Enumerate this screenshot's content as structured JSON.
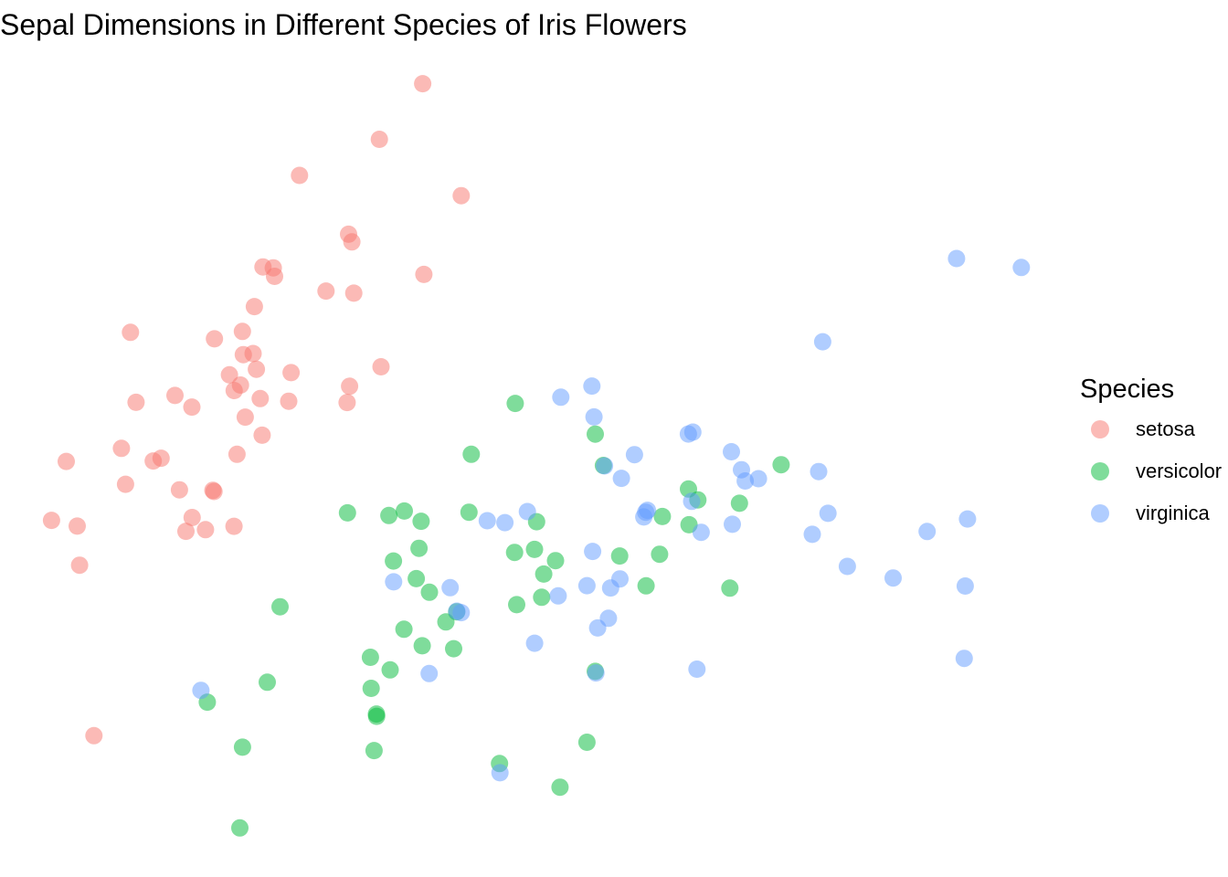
{
  "chart_data": {
    "type": "scatter",
    "title": "Sepal Dimensions in Different Species of Iris Flowers",
    "xlabel": "",
    "ylabel": "",
    "xlim": [
      4.25,
      7.95
    ],
    "ylim": [
      1.95,
      4.45
    ],
    "grid": false,
    "point_opacity": 0.5,
    "legend": {
      "title": "Species",
      "placement": "right"
    },
    "series": [
      {
        "name": "setosa",
        "color": "#F8766D",
        "x": [
          5.1,
          4.9,
          4.7,
          4.6,
          5.0,
          5.4,
          4.6,
          5.0,
          4.4,
          4.9,
          5.4,
          4.8,
          4.8,
          4.3,
          5.8,
          5.7,
          5.4,
          5.1,
          5.7,
          5.1,
          5.4,
          5.1,
          4.6,
          5.1,
          4.8,
          5.0,
          5.0,
          5.2,
          5.2,
          4.7,
          4.8,
          5.4,
          5.2,
          5.5,
          4.9,
          5.0,
          5.5,
          4.9,
          4.4,
          5.1,
          5.0,
          4.5,
          4.4,
          5.0,
          5.1,
          4.8,
          5.1,
          4.6,
          5.3,
          5.0
        ],
        "y": [
          3.5,
          3.0,
          3.2,
          3.1,
          3.6,
          3.9,
          3.4,
          3.4,
          2.9,
          3.1,
          3.7,
          3.4,
          3.0,
          3.0,
          4.0,
          4.4,
          3.9,
          3.5,
          3.8,
          3.8,
          3.4,
          3.7,
          3.6,
          3.3,
          3.4,
          3.0,
          3.4,
          3.5,
          3.4,
          3.2,
          3.1,
          3.4,
          4.1,
          4.2,
          3.1,
          3.2,
          3.5,
          3.6,
          3.0,
          3.4,
          3.5,
          2.3,
          3.2,
          3.5,
          3.8,
          3.0,
          3.8,
          3.2,
          3.7,
          3.3
        ]
      },
      {
        "name": "versicolor",
        "color": "#00BA38",
        "x": [
          7.0,
          6.4,
          6.9,
          5.5,
          6.5,
          5.7,
          6.3,
          4.9,
          6.6,
          5.2,
          5.0,
          5.9,
          6.0,
          6.1,
          5.6,
          6.7,
          5.6,
          5.8,
          6.2,
          5.6,
          5.9,
          6.1,
          6.3,
          6.1,
          6.4,
          6.6,
          6.8,
          6.7,
          6.0,
          5.7,
          5.5,
          5.5,
          5.8,
          6.0,
          5.4,
          6.0,
          6.7,
          6.3,
          5.6,
          5.5,
          5.5,
          6.1,
          5.8,
          5.0,
          5.6,
          5.7,
          5.7,
          6.2,
          5.1,
          5.7
        ],
        "y": [
          3.2,
          3.2,
          3.1,
          2.3,
          2.8,
          2.8,
          3.3,
          2.4,
          2.9,
          2.7,
          2.0,
          3.0,
          2.2,
          2.9,
          2.9,
          3.1,
          3.0,
          2.7,
          2.2,
          2.5,
          3.2,
          2.8,
          2.5,
          2.8,
          2.9,
          3.0,
          2.8,
          3.0,
          2.9,
          2.6,
          2.4,
          2.4,
          2.7,
          2.7,
          3.0,
          3.4,
          3.1,
          2.3,
          3.0,
          2.5,
          2.6,
          3.0,
          2.6,
          2.3,
          2.7,
          3.0,
          2.9,
          2.9,
          2.5,
          2.8
        ]
      },
      {
        "name": "virginica",
        "color": "#619CFF",
        "x": [
          6.3,
          5.8,
          7.1,
          6.3,
          6.5,
          7.6,
          4.9,
          7.3,
          6.7,
          7.2,
          6.5,
          6.4,
          6.8,
          5.7,
          5.8,
          6.4,
          6.5,
          7.7,
          7.7,
          6.0,
          6.9,
          5.6,
          7.7,
          6.3,
          6.7,
          7.2,
          6.2,
          6.1,
          6.4,
          7.2,
          7.4,
          7.9,
          6.4,
          6.3,
          6.1,
          7.7,
          6.3,
          6.4,
          6.0,
          6.9,
          6.7,
          6.9,
          5.8,
          6.8,
          6.7,
          6.7,
          6.3,
          6.5,
          6.2,
          5.9
        ],
        "y": [
          3.3,
          2.7,
          3.0,
          2.9,
          3.0,
          3.0,
          2.5,
          2.9,
          2.5,
          3.6,
          3.2,
          2.7,
          3.0,
          2.5,
          2.8,
          3.2,
          3.0,
          3.8,
          2.6,
          2.2,
          3.2,
          2.8,
          2.8,
          2.7,
          3.3,
          3.2,
          2.8,
          3.0,
          2.8,
          3.0,
          2.8,
          3.8,
          2.8,
          2.8,
          2.6,
          3.0,
          3.4,
          3.1,
          3.0,
          3.1,
          3.1,
          3.1,
          2.7,
          3.2,
          3.3,
          3.0,
          2.5,
          3.0,
          3.4,
          3.0
        ]
      }
    ]
  }
}
